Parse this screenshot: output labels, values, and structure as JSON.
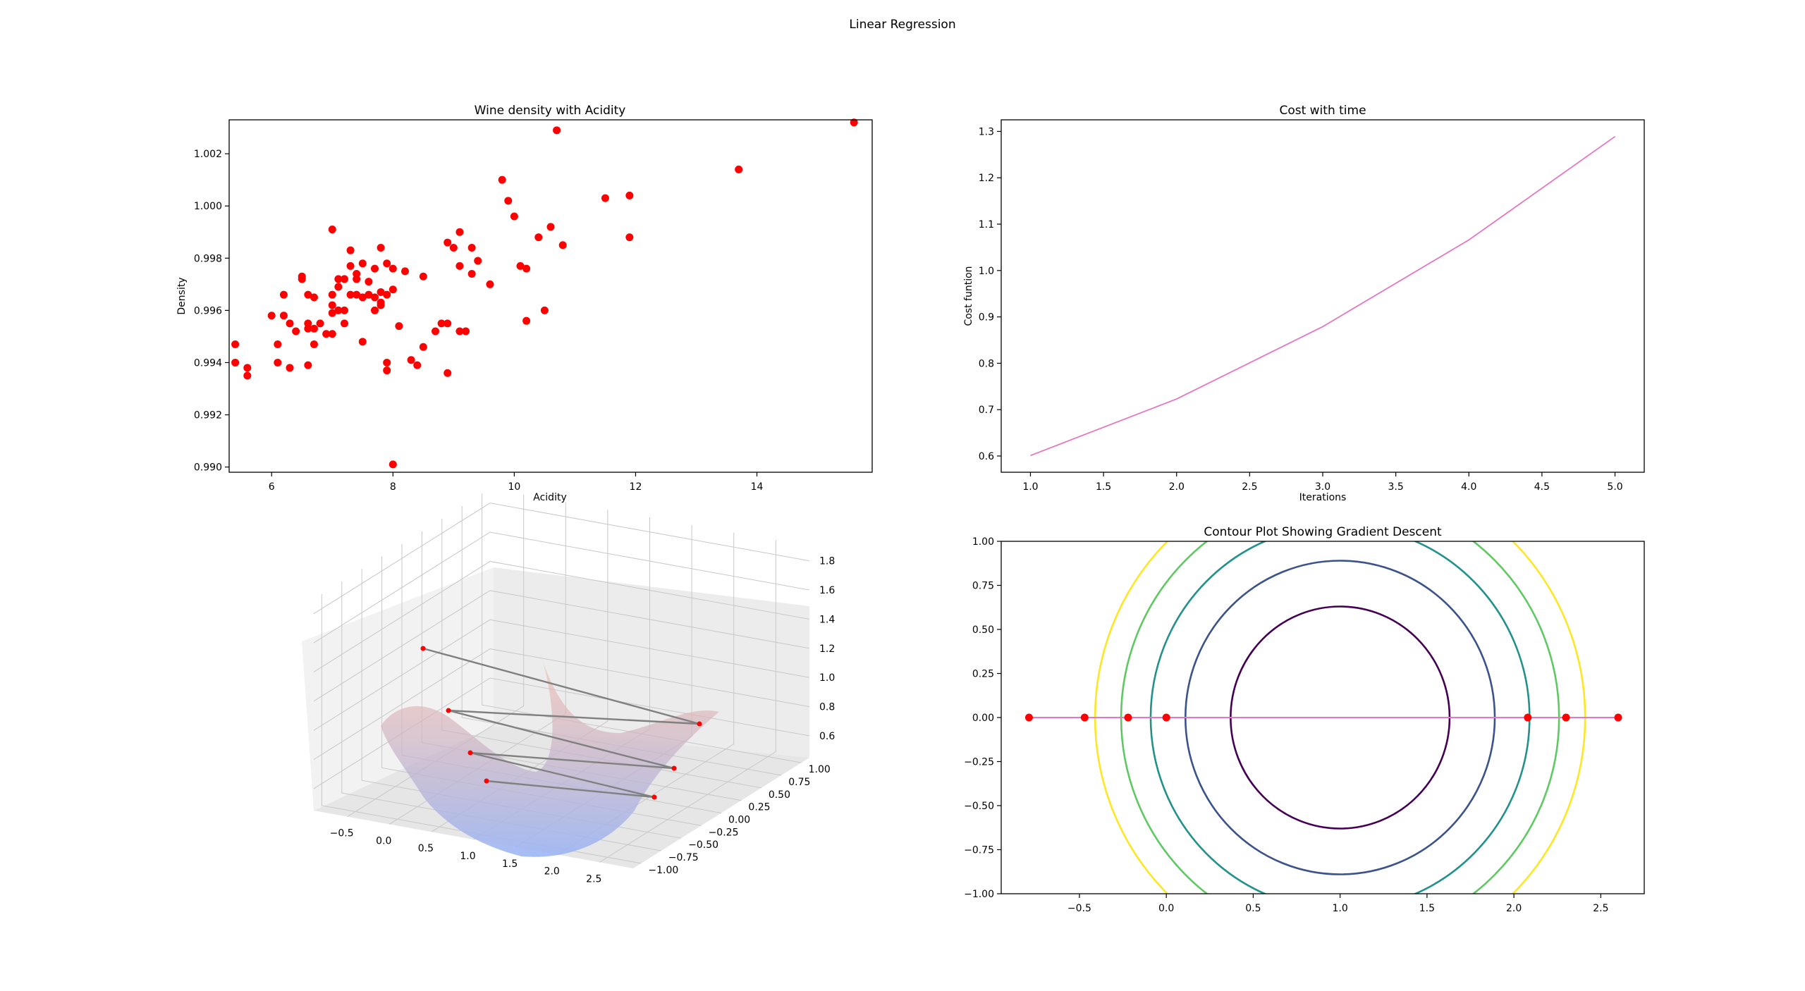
{
  "figure": {
    "suptitle": "Linear Regression"
  },
  "colors": {
    "scatter": "#ff0000",
    "cost_line": "#e377c2",
    "descent_path": "#e377c2",
    "descent_points": "#ff0000",
    "path_3d": "#808080",
    "surface_low": "#9bb5f5",
    "surface_high": "#f5b4a0"
  },
  "chart_data": [
    {
      "id": "wine-scatter",
      "type": "scatter",
      "title": "Wine density with Acidity",
      "xlabel": "Acidity",
      "ylabel": "Density",
      "xlim": [
        5.3,
        15.9
      ],
      "ylim": [
        0.9898,
        1.0033
      ],
      "xticks": [
        6,
        8,
        10,
        12,
        14
      ],
      "yticks": [
        0.99,
        0.992,
        0.994,
        0.996,
        0.998,
        1.0,
        1.002
      ],
      "ytick_labels": [
        "0.990",
        "0.992",
        "0.994",
        "0.996",
        "0.998",
        "1.000",
        "1.002"
      ],
      "points": [
        [
          5.4,
          0.9947
        ],
        [
          5.4,
          0.994
        ],
        [
          5.6,
          0.9938
        ],
        [
          5.6,
          0.9935
        ],
        [
          6.0,
          0.9958
        ],
        [
          6.1,
          0.9947
        ],
        [
          6.1,
          0.994
        ],
        [
          6.2,
          0.9966
        ],
        [
          6.2,
          0.9958
        ],
        [
          6.3,
          0.9955
        ],
        [
          6.3,
          0.9938
        ],
        [
          6.4,
          0.9952
        ],
        [
          6.5,
          0.9973
        ],
        [
          6.5,
          0.9972
        ],
        [
          6.6,
          0.9966
        ],
        [
          6.6,
          0.9955
        ],
        [
          6.6,
          0.9953
        ],
        [
          6.6,
          0.9939
        ],
        [
          6.7,
          0.9965
        ],
        [
          6.7,
          0.9953
        ],
        [
          6.7,
          0.9947
        ],
        [
          6.8,
          0.9955
        ],
        [
          6.9,
          0.9951
        ],
        [
          7.0,
          0.9991
        ],
        [
          7.0,
          0.9966
        ],
        [
          7.0,
          0.9962
        ],
        [
          7.0,
          0.9959
        ],
        [
          7.0,
          0.9951
        ],
        [
          7.1,
          0.9972
        ],
        [
          7.1,
          0.9969
        ],
        [
          7.1,
          0.996
        ],
        [
          7.2,
          0.9972
        ],
        [
          7.2,
          0.996
        ],
        [
          7.2,
          0.9955
        ],
        [
          7.3,
          0.9983
        ],
        [
          7.3,
          0.9977
        ],
        [
          7.3,
          0.9966
        ],
        [
          7.4,
          0.9974
        ],
        [
          7.4,
          0.9972
        ],
        [
          7.4,
          0.9966
        ],
        [
          7.5,
          0.9978
        ],
        [
          7.5,
          0.9965
        ],
        [
          7.5,
          0.9948
        ],
        [
          7.6,
          0.9971
        ],
        [
          7.6,
          0.9966
        ],
        [
          7.7,
          0.9976
        ],
        [
          7.7,
          0.9965
        ],
        [
          7.7,
          0.996
        ],
        [
          7.8,
          0.9984
        ],
        [
          7.8,
          0.9967
        ],
        [
          7.8,
          0.9963
        ],
        [
          7.8,
          0.9962
        ],
        [
          7.9,
          0.9978
        ],
        [
          7.9,
          0.9966
        ],
        [
          7.9,
          0.994
        ],
        [
          7.9,
          0.9937
        ],
        [
          8.0,
          0.9976
        ],
        [
          8.0,
          0.9968
        ],
        [
          8.0,
          0.9901
        ],
        [
          8.1,
          0.9954
        ],
        [
          8.2,
          0.9975
        ],
        [
          8.3,
          0.9941
        ],
        [
          8.4,
          0.9939
        ],
        [
          8.5,
          0.9973
        ],
        [
          8.5,
          0.9946
        ],
        [
          8.7,
          0.9952
        ],
        [
          8.8,
          0.9955
        ],
        [
          8.9,
          0.9986
        ],
        [
          8.9,
          0.9955
        ],
        [
          8.9,
          0.9936
        ],
        [
          9.0,
          0.9984
        ],
        [
          9.1,
          0.999
        ],
        [
          9.1,
          0.9977
        ],
        [
          9.1,
          0.9952
        ],
        [
          9.2,
          0.9952
        ],
        [
          9.3,
          0.9984
        ],
        [
          9.3,
          0.9974
        ],
        [
          9.4,
          0.9979
        ],
        [
          9.6,
          0.997
        ],
        [
          9.8,
          1.001
        ],
        [
          9.9,
          1.0002
        ],
        [
          10.0,
          0.9996
        ],
        [
          10.1,
          0.9977
        ],
        [
          10.2,
          0.9976
        ],
        [
          10.2,
          0.9956
        ],
        [
          10.4,
          0.9988
        ],
        [
          10.5,
          0.996
        ],
        [
          10.6,
          0.9992
        ],
        [
          10.7,
          1.0029
        ],
        [
          10.8,
          0.9985
        ],
        [
          11.5,
          1.0003
        ],
        [
          11.9,
          1.0004
        ],
        [
          11.9,
          0.9988
        ],
        [
          13.7,
          1.0014
        ],
        [
          15.6,
          1.0032
        ]
      ]
    },
    {
      "id": "cost-line",
      "type": "line",
      "title": "Cost with time",
      "xlabel": "Iterations",
      "ylabel": "Cost funtion",
      "xlim": [
        0.8,
        5.2
      ],
      "ylim": [
        0.565,
        1.325
      ],
      "xticks": [
        1.0,
        1.5,
        2.0,
        2.5,
        3.0,
        3.5,
        4.0,
        4.5,
        5.0
      ],
      "xtick_labels": [
        "1.0",
        "1.5",
        "2.0",
        "2.5",
        "3.0",
        "3.5",
        "4.0",
        "4.5",
        "5.0"
      ],
      "yticks": [
        0.6,
        0.7,
        0.8,
        0.9,
        1.0,
        1.1,
        1.2,
        1.3
      ],
      "ytick_labels": [
        "0.6",
        "0.7",
        "0.8",
        "0.9",
        "1.0",
        "1.1",
        "1.2",
        "1.3"
      ],
      "x": [
        1,
        2,
        3,
        4,
        5
      ],
      "y": [
        0.601,
        0.723,
        0.879,
        1.066,
        1.289
      ]
    },
    {
      "id": "surface-3d",
      "type": "surface",
      "xticks": [
        -0.5,
        0.0,
        0.5,
        1.0,
        1.5,
        2.0,
        2.5
      ],
      "xtick_labels": [
        "−0.5",
        "0.0",
        "0.5",
        "1.0",
        "1.5",
        "2.0",
        "2.5"
      ],
      "yticks": [
        -1.0,
        -0.75,
        -0.5,
        -0.25,
        0.0,
        0.25,
        0.5,
        0.75,
        1.0
      ],
      "ytick_labels": [
        "−1.00",
        "−0.75",
        "−0.50",
        "−0.25",
        "0.00",
        "0.25",
        "0.50",
        "0.75",
        "1.00"
      ],
      "zticks": [
        0.6,
        0.8,
        1.0,
        1.2,
        1.4,
        1.6,
        1.8
      ],
      "ztick_labels": [
        "0.6",
        "0.8",
        "1.0",
        "1.2",
        "1.4",
        "1.6",
        "1.8"
      ],
      "path": [
        [
          -0.79,
          0.0,
          1.6
        ],
        [
          2.62,
          0.0,
          1.0
        ],
        [
          -0.47,
          0.0,
          1.1
        ],
        [
          2.3,
          0.0,
          0.6
        ],
        [
          -0.22,
          0.0,
          0.8
        ],
        [
          2.08,
          0.0,
          0.4
        ],
        [
          0.01,
          0.0,
          0.6
        ]
      ]
    },
    {
      "id": "contour",
      "type": "contour",
      "title": "Contour Plot Showing Gradient Descent",
      "xlim": [
        -0.95,
        2.75
      ],
      "ylim": [
        -1.0,
        1.0
      ],
      "xticks": [
        -0.5,
        0.0,
        0.5,
        1.0,
        1.5,
        2.0,
        2.5
      ],
      "xtick_labels": [
        "−0.5",
        "0.0",
        "0.5",
        "1.0",
        "1.5",
        "2.0",
        "2.5"
      ],
      "yticks": [
        -1.0,
        -0.75,
        -0.5,
        -0.25,
        0.0,
        0.25,
        0.5,
        0.75,
        1.0
      ],
      "ytick_labels": [
        "−1.00",
        "−0.75",
        "−0.50",
        "−0.25",
        "0.00",
        "0.25",
        "0.50",
        "0.75",
        "1.00"
      ],
      "center": [
        1.0,
        0.0
      ],
      "levels": [
        {
          "radius": 0.63,
          "color": "#440154"
        },
        {
          "radius": 0.89,
          "color": "#3b528b"
        },
        {
          "radius": 1.09,
          "color": "#21918c"
        },
        {
          "radius": 1.26,
          "color": "#5ec962"
        },
        {
          "radius": 1.41,
          "color": "#fde725"
        }
      ],
      "path_x": [
        -0.79,
        -0.47,
        -0.22,
        0.0,
        2.08,
        2.3,
        2.6
      ],
      "path_y": [
        0.0,
        0.0,
        0.0,
        0.0,
        0.0,
        0.0,
        0.0
      ]
    }
  ]
}
